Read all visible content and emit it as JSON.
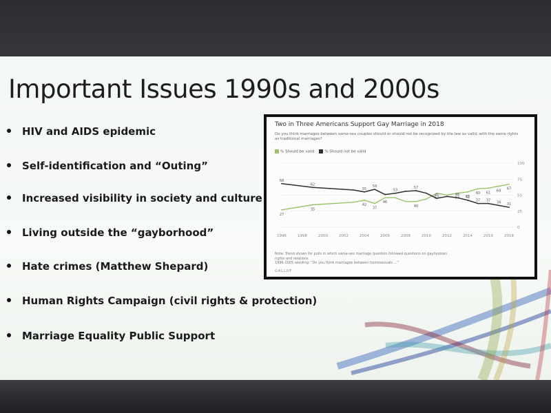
{
  "slide": {
    "title": "Important Issues 1990s and 2000s",
    "bullets": [
      "HIV and AIDS epidemic",
      "Self-identification and “Outing”",
      "Increased visibility in society and culture",
      "Living outside the “gayborhood”",
      "Hate crimes (Matthew Shepard)",
      "Human Rights Campaign (civil rights & protection)",
      "Marriage Equality Public Support"
    ]
  },
  "chart_data": {
    "type": "line",
    "title": "Two in Three Americans Support Gay Marriage in 2018",
    "subtitle": "Do you think marriages between same-sex couples should or should not be recognized by the law as valid, with the same rights as traditional marriages?",
    "legend": [
      "% Should be valid",
      "% Should not be valid"
    ],
    "x_ticks": [
      "1996",
      "1998",
      "2000",
      "2002",
      "2004",
      "2006",
      "2008",
      "2010",
      "2012",
      "2014",
      "2016",
      "2018"
    ],
    "y_ticks": [
      "0",
      "25",
      "50",
      "75",
      "100"
    ],
    "ylim": [
      0,
      100
    ],
    "xlim": [
      1996,
      2018
    ],
    "series": [
      {
        "name": "% Should be valid",
        "color": "#9cc26c",
        "x": [
          1996,
          1999,
          2003,
          2004,
          2005,
          2006,
          2007,
          2008,
          2009,
          2010,
          2011,
          2012,
          2013,
          2014,
          2015,
          2016,
          2017,
          2018
        ],
        "y": [
          27,
          35,
          39,
          42,
          37,
          46,
          46,
          40,
          40,
          44,
          53,
          50,
          53,
          55,
          60,
          61,
          64,
          67
        ],
        "labels": [
          "27",
          "35",
          "",
          "42",
          "37",
          "46",
          "",
          "",
          "40",
          "",
          "53",
          "",
          "53",
          "55",
          "60",
          "61",
          "64",
          "67"
        ]
      },
      {
        "name": "% Should not be valid",
        "color": "#2f2f2f",
        "x": [
          1996,
          1999,
          2003,
          2004,
          2005,
          2006,
          2007,
          2008,
          2009,
          2010,
          2011,
          2012,
          2013,
          2014,
          2015,
          2016,
          2017,
          2018
        ],
        "y": [
          68,
          62,
          58,
          55,
          59,
          51,
          53,
          56,
          57,
          53,
          45,
          48,
          46,
          42,
          37,
          37,
          34,
          31
        ],
        "labels": [
          "68",
          "62",
          "",
          "55",
          "59",
          "",
          "53",
          "",
          "57",
          "",
          "45",
          "",
          "46",
          "42",
          "37",
          "37",
          "34",
          "31"
        ]
      }
    ],
    "note_lines": [
      "Note: Trend shown for polls in which same-sex marriage question followed questions on gay/lesbian",
      "rights and relations",
      "1996-2005 wording: “Do you think marriages between homosexuals ...”"
    ],
    "source": "GALLUP"
  }
}
